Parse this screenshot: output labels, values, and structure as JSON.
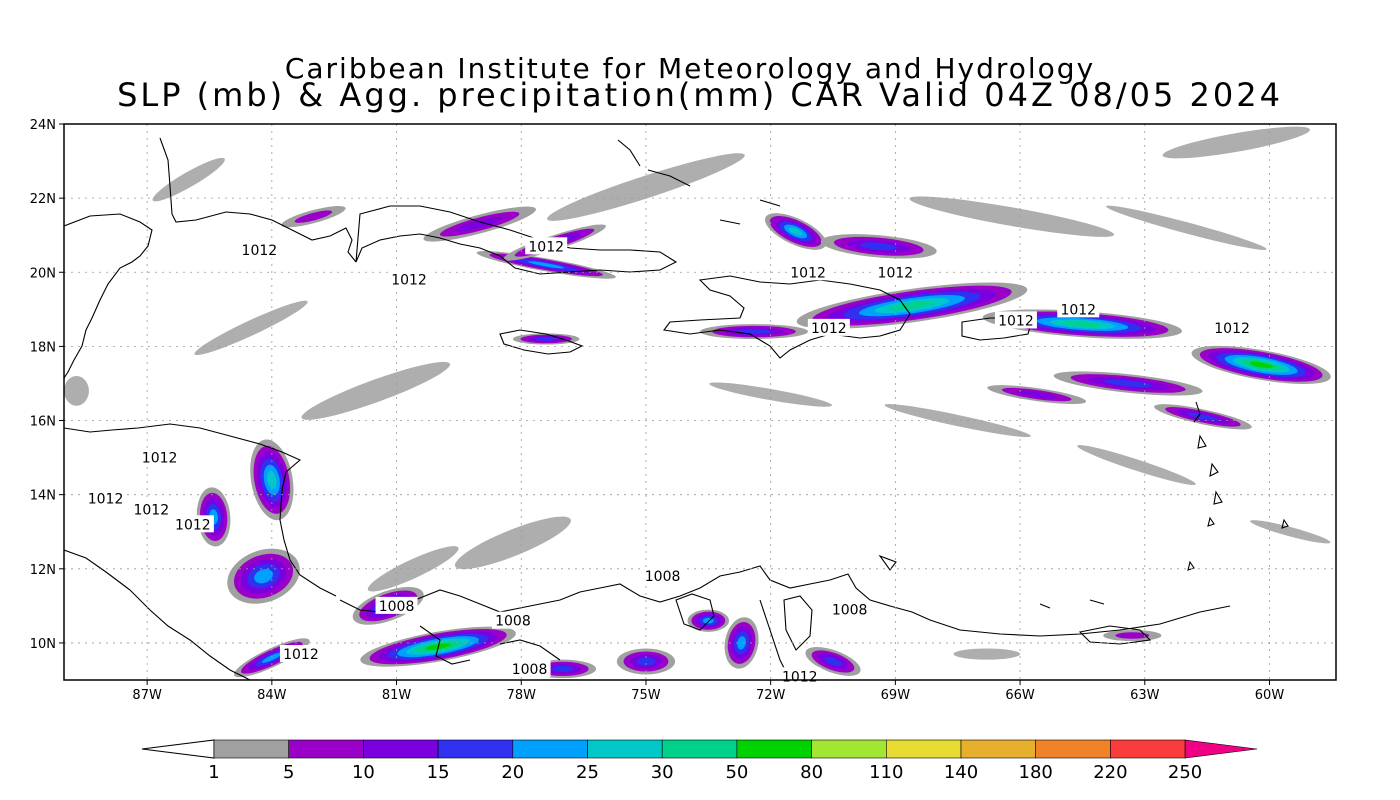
{
  "title": {
    "line1": "Caribbean Institute for Meteorology and Hydrology",
    "line2": "SLP (mb) & Agg. precipitation(mm) CAR Valid 04Z 08/05 2024"
  },
  "map": {
    "lat_range": [
      9,
      24
    ],
    "lon_range": [
      -89,
      -58.4
    ],
    "lat_ticks": [
      {
        "lat": 24,
        "label": "24N"
      },
      {
        "lat": 22,
        "label": "22N"
      },
      {
        "lat": 20,
        "label": "20N"
      },
      {
        "lat": 18,
        "label": "18N"
      },
      {
        "lat": 16,
        "label": "16N"
      },
      {
        "lat": 14,
        "label": "14N"
      },
      {
        "lat": 12,
        "label": "12N"
      },
      {
        "lat": 10,
        "label": "10N"
      }
    ],
    "lon_ticks": [
      {
        "lon": -87,
        "label": "87W"
      },
      {
        "lon": -84,
        "label": "84W"
      },
      {
        "lon": -81,
        "label": "81W"
      },
      {
        "lon": -78,
        "label": "78W"
      },
      {
        "lon": -75,
        "label": "75W"
      },
      {
        "lon": -72,
        "label": "72W"
      },
      {
        "lon": -69,
        "label": "69W"
      },
      {
        "lon": -66,
        "label": "66W"
      },
      {
        "lon": -63,
        "label": "63W"
      },
      {
        "lon": -60,
        "label": "60W"
      }
    ],
    "grid": true,
    "isobar_labels": [
      {
        "text": "1012",
        "lon": -84.3,
        "lat": 20.6
      },
      {
        "text": "1012",
        "lon": -80.7,
        "lat": 19.8
      },
      {
        "text": "1012",
        "lon": -77.4,
        "lat": 20.7
      },
      {
        "text": "1012",
        "lon": -71.1,
        "lat": 20.0
      },
      {
        "text": "1012",
        "lon": -69.0,
        "lat": 20.0
      },
      {
        "text": "1012",
        "lon": -70.6,
        "lat": 18.5
      },
      {
        "text": "1012",
        "lon": -66.1,
        "lat": 18.7
      },
      {
        "text": "1012",
        "lon": -64.6,
        "lat": 19.0
      },
      {
        "text": "1012",
        "lon": -60.9,
        "lat": 18.5
      },
      {
        "text": "1012",
        "lon": -86.7,
        "lat": 15.0
      },
      {
        "text": "1012",
        "lon": -88.0,
        "lat": 13.9
      },
      {
        "text": "1012",
        "lon": -86.9,
        "lat": 13.6
      },
      {
        "text": "1012",
        "lon": -85.9,
        "lat": 13.2
      },
      {
        "text": "1012",
        "lon": -83.3,
        "lat": 9.7
      },
      {
        "text": "1008",
        "lon": -81.0,
        "lat": 11.0
      },
      {
        "text": "1008",
        "lon": -78.2,
        "lat": 10.6
      },
      {
        "text": "1008",
        "lon": -77.8,
        "lat": 9.3
      },
      {
        "text": "1008",
        "lon": -74.6,
        "lat": 11.8
      },
      {
        "text": "1008",
        "lon": -70.1,
        "lat": 10.9
      },
      {
        "text": "1012",
        "lon": -71.3,
        "lat": 9.1
      }
    ]
  },
  "colorbar": {
    "labels": [
      "1",
      "5",
      "10",
      "15",
      "20",
      "25",
      "30",
      "50",
      "80",
      "110",
      "140",
      "180",
      "220",
      "250"
    ],
    "colors": [
      "#a0a0a0",
      "#9b00c8",
      "#7a00e0",
      "#3030f0",
      "#00a0ff",
      "#00c8c8",
      "#00d28c",
      "#00d200",
      "#a0e632",
      "#e6dc32",
      "#e6af2d",
      "#f08228",
      "#fa3c3c"
    ],
    "over_color": "#f00082",
    "under_color": "#ffffff"
  },
  "precip_bands": [
    {
      "lon": -83.0,
      "lat": 21.5,
      "w": 1.6,
      "h": 0.35,
      "rot": 15,
      "level": 1
    },
    {
      "lon": -79.0,
      "lat": 21.3,
      "w": 2.8,
      "h": 0.5,
      "rot": 15,
      "level": 2
    },
    {
      "lon": -77.4,
      "lat": 20.2,
      "w": 3.4,
      "h": 0.35,
      "rot": -10,
      "level": 4
    },
    {
      "lon": -77.2,
      "lat": 20.8,
      "w": 2.6,
      "h": 0.4,
      "rot": 18,
      "level": 3
    },
    {
      "lon": -71.4,
      "lat": 21.1,
      "w": 1.6,
      "h": 0.7,
      "rot": -25,
      "level": 5
    },
    {
      "lon": -69.4,
      "lat": 20.7,
      "w": 2.8,
      "h": 0.6,
      "rot": -5,
      "level": 3
    },
    {
      "lon": -68.6,
      "lat": 19.1,
      "w": 5.6,
      "h": 0.9,
      "rot": 8,
      "level": 6
    },
    {
      "lon": -72.4,
      "lat": 18.4,
      "w": 2.6,
      "h": 0.4,
      "rot": 0,
      "level": 3
    },
    {
      "lon": -77.4,
      "lat": 18.2,
      "w": 1.6,
      "h": 0.3,
      "rot": 0,
      "level": 3
    },
    {
      "lon": -64.5,
      "lat": 18.6,
      "w": 4.8,
      "h": 0.7,
      "rot": -4,
      "level": 6
    },
    {
      "lon": -60.2,
      "lat": 17.5,
      "w": 3.4,
      "h": 0.8,
      "rot": -10,
      "level": 7
    },
    {
      "lon": -63.4,
      "lat": 17.0,
      "w": 3.6,
      "h": 0.5,
      "rot": -6,
      "level": 3
    },
    {
      "lon": -65.6,
      "lat": 16.7,
      "w": 2.4,
      "h": 0.35,
      "rot": -8,
      "level": 2
    },
    {
      "lon": -61.6,
      "lat": 16.1,
      "w": 2.4,
      "h": 0.4,
      "rot": -12,
      "level": 3
    },
    {
      "lon": -84.0,
      "lat": 14.4,
      "w": 1.0,
      "h": 2.2,
      "rot": 10,
      "level": 5
    },
    {
      "lon": -85.4,
      "lat": 13.4,
      "w": 0.8,
      "h": 1.6,
      "rot": 5,
      "level": 4
    },
    {
      "lon": -84.2,
      "lat": 11.8,
      "w": 1.8,
      "h": 1.4,
      "rot": 20,
      "level": 4
    },
    {
      "lon": -81.2,
      "lat": 11.0,
      "w": 1.8,
      "h": 0.8,
      "rot": 20,
      "level": 4
    },
    {
      "lon": -80.0,
      "lat": 9.9,
      "w": 3.8,
      "h": 0.8,
      "rot": 10,
      "level": 7
    },
    {
      "lon": -84.0,
      "lat": 9.6,
      "w": 2.0,
      "h": 0.5,
      "rot": 25,
      "level": 4
    },
    {
      "lon": -73.5,
      "lat": 10.6,
      "w": 1.0,
      "h": 0.6,
      "rot": 0,
      "level": 4
    },
    {
      "lon": -72.7,
      "lat": 10.0,
      "w": 0.8,
      "h": 1.4,
      "rot": -10,
      "level": 4
    },
    {
      "lon": -75.0,
      "lat": 9.5,
      "w": 1.4,
      "h": 0.7,
      "rot": 0,
      "level": 3
    },
    {
      "lon": -77.0,
      "lat": 9.3,
      "w": 1.6,
      "h": 0.5,
      "rot": 0,
      "level": 3
    },
    {
      "lon": -70.5,
      "lat": 9.5,
      "w": 1.4,
      "h": 0.6,
      "rot": -20,
      "level": 3
    },
    {
      "lon": -63.3,
      "lat": 10.2,
      "w": 1.4,
      "h": 0.3,
      "rot": 0,
      "level": 1
    }
  ],
  "gray_streaks": [
    {
      "lon": -75.0,
      "lat": 22.3,
      "w": 5.0,
      "h": 0.6,
      "rot": 18
    },
    {
      "lon": -66.2,
      "lat": 21.5,
      "w": 5.0,
      "h": 0.5,
      "rot": -10
    },
    {
      "lon": -60.8,
      "lat": 23.5,
      "w": 3.6,
      "h": 0.5,
      "rot": 10
    },
    {
      "lon": -62.0,
      "lat": 21.2,
      "w": 4.0,
      "h": 0.3,
      "rot": -15
    },
    {
      "lon": -81.5,
      "lat": 16.8,
      "w": 3.8,
      "h": 0.6,
      "rot": 20
    },
    {
      "lon": -84.5,
      "lat": 18.5,
      "w": 3.0,
      "h": 0.4,
      "rot": 25
    },
    {
      "lon": -78.2,
      "lat": 12.7,
      "w": 3.0,
      "h": 0.7,
      "rot": 22
    },
    {
      "lon": -80.6,
      "lat": 12.0,
      "w": 2.4,
      "h": 0.5,
      "rot": 25
    },
    {
      "lon": -63.2,
      "lat": 14.8,
      "w": 3.0,
      "h": 0.3,
      "rot": -18
    },
    {
      "lon": -59.5,
      "lat": 13.0,
      "w": 2.0,
      "h": 0.25,
      "rot": -15
    },
    {
      "lon": -66.8,
      "lat": 9.7,
      "w": 1.6,
      "h": 0.3,
      "rot": 0
    },
    {
      "lon": -72.0,
      "lat": 16.7,
      "w": 3.0,
      "h": 0.3,
      "rot": -10
    },
    {
      "lon": -67.5,
      "lat": 16.0,
      "w": 3.6,
      "h": 0.3,
      "rot": -12
    },
    {
      "lon": -86.0,
      "lat": 22.5,
      "w": 2.0,
      "h": 0.4,
      "rot": 30
    },
    {
      "lon": -88.7,
      "lat": 16.8,
      "w": 0.6,
      "h": 0.8,
      "rot": 0
    }
  ]
}
